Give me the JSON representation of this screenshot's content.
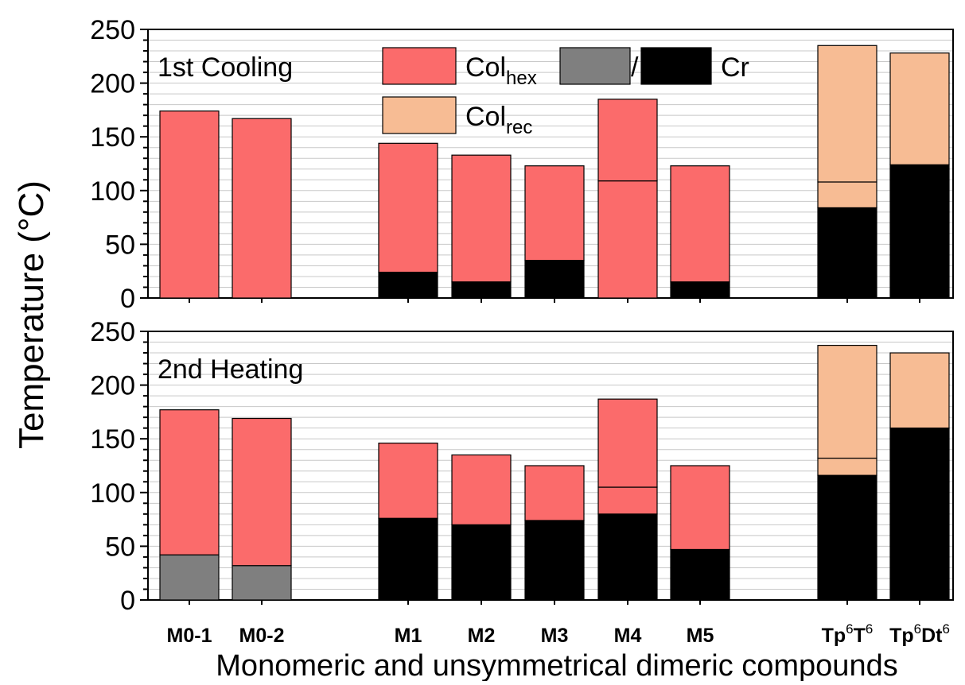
{
  "chart_data": {
    "type": "bar",
    "stacked": true,
    "y_axis_label": "Temperature (°C)",
    "x_axis_label": "Monomeric and unsymmetrical dimeric compounds",
    "ylim": [
      0,
      250
    ],
    "yticks": [
      0,
      50,
      100,
      150,
      200,
      250
    ],
    "grid": "horizontal minor lines every 10 °C",
    "categories": [
      {
        "main": "M0-1"
      },
      {
        "main": "M0-2"
      },
      {
        "main": "M1"
      },
      {
        "main": "M2"
      },
      {
        "main": "M3"
      },
      {
        "main": "M4"
      },
      {
        "main": "M5"
      },
      {
        "main": "Tp",
        "sup1": "6",
        "mid": "T",
        "sup2": "6"
      },
      {
        "main": "Tp",
        "sup1": "6",
        "mid": "Dt",
        "sup2": "6"
      }
    ],
    "legend": {
      "placement": "top-center of upper panel",
      "row1": [
        {
          "phase": "Col_hex",
          "text": "Col",
          "sub": "hex",
          "color": "#fb6b6b"
        },
        {
          "phase": "unidentified",
          "color": "#7f7f7f"
        },
        {
          "phase": "Cr",
          "text": "Cr",
          "color": "#000000"
        }
      ],
      "row1_separator": "/",
      "row2": [
        {
          "phase": "Col_rec",
          "text": "Col",
          "sub": "rec",
          "color": "#f7bc94"
        }
      ]
    },
    "colors": {
      "Col_hex": "#fb6b6b",
      "Col_rec": "#f7bc94",
      "grey": "#7f7f7f",
      "Cr": "#000000"
    },
    "panels": [
      {
        "title": "1st Cooling",
        "bars": [
          {
            "category": "M0-1",
            "segments": [
              {
                "phase": "Col_hex",
                "from": 0,
                "to": 174
              }
            ]
          },
          {
            "category": "M0-2",
            "segments": [
              {
                "phase": "Col_hex",
                "from": 0,
                "to": 167
              }
            ]
          },
          {
            "category": "M1",
            "segments": [
              {
                "phase": "Cr",
                "from": 0,
                "to": 24
              },
              {
                "phase": "Col_hex",
                "from": 24,
                "to": 144
              }
            ]
          },
          {
            "category": "M2",
            "segments": [
              {
                "phase": "Cr",
                "from": 0,
                "to": 15
              },
              {
                "phase": "Col_hex",
                "from": 15,
                "to": 133
              }
            ]
          },
          {
            "category": "M3",
            "segments": [
              {
                "phase": "Cr",
                "from": 0,
                "to": 35
              },
              {
                "phase": "Col_hex",
                "from": 35,
                "to": 123
              }
            ]
          },
          {
            "category": "M4",
            "segments": [
              {
                "phase": "Col_hex",
                "from": 0,
                "to": 109
              },
              {
                "phase": "Col_hex",
                "from": 109,
                "to": 185
              }
            ]
          },
          {
            "category": "M5",
            "segments": [
              {
                "phase": "Cr",
                "from": 0,
                "to": 15
              },
              {
                "phase": "Col_hex",
                "from": 15,
                "to": 123
              }
            ]
          },
          {
            "category": "Tp6T6",
            "segments": [
              {
                "phase": "Cr",
                "from": 0,
                "to": 84
              },
              {
                "phase": "Col_rec",
                "from": 84,
                "to": 108
              },
              {
                "phase": "Col_rec",
                "from": 108,
                "to": 235
              }
            ]
          },
          {
            "category": "Tp6Dt6",
            "segments": [
              {
                "phase": "Cr",
                "from": 0,
                "to": 124
              },
              {
                "phase": "Col_rec",
                "from": 124,
                "to": 228
              }
            ]
          }
        ]
      },
      {
        "title": "2nd Heating",
        "bars": [
          {
            "category": "M0-1",
            "segments": [
              {
                "phase": "grey",
                "from": 0,
                "to": 42
              },
              {
                "phase": "Col_hex",
                "from": 42,
                "to": 177
              }
            ]
          },
          {
            "category": "M0-2",
            "segments": [
              {
                "phase": "grey",
                "from": 0,
                "to": 32
              },
              {
                "phase": "Col_hex",
                "from": 32,
                "to": 169
              }
            ]
          },
          {
            "category": "M1",
            "segments": [
              {
                "phase": "Cr",
                "from": 0,
                "to": 76
              },
              {
                "phase": "Col_hex",
                "from": 76,
                "to": 146
              }
            ]
          },
          {
            "category": "M2",
            "segments": [
              {
                "phase": "Cr",
                "from": 0,
                "to": 70
              },
              {
                "phase": "Col_hex",
                "from": 70,
                "to": 135
              }
            ]
          },
          {
            "category": "M3",
            "segments": [
              {
                "phase": "Cr",
                "from": 0,
                "to": 74
              },
              {
                "phase": "Col_hex",
                "from": 74,
                "to": 125
              }
            ]
          },
          {
            "category": "M4",
            "segments": [
              {
                "phase": "Cr",
                "from": 0,
                "to": 80
              },
              {
                "phase": "Col_hex",
                "from": 80,
                "to": 105
              },
              {
                "phase": "Col_hex",
                "from": 105,
                "to": 187
              }
            ]
          },
          {
            "category": "M5",
            "segments": [
              {
                "phase": "Cr",
                "from": 0,
                "to": 47
              },
              {
                "phase": "Col_hex",
                "from": 47,
                "to": 125
              }
            ]
          },
          {
            "category": "Tp6T6",
            "segments": [
              {
                "phase": "Cr",
                "from": 0,
                "to": 116
              },
              {
                "phase": "Col_rec",
                "from": 116,
                "to": 132
              },
              {
                "phase": "Col_rec",
                "from": 132,
                "to": 237
              }
            ]
          },
          {
            "category": "Tp6Dt6",
            "segments": [
              {
                "phase": "Cr",
                "from": 0,
                "to": 160
              },
              {
                "phase": "Col_rec",
                "from": 160,
                "to": 230
              }
            ]
          }
        ]
      }
    ]
  }
}
